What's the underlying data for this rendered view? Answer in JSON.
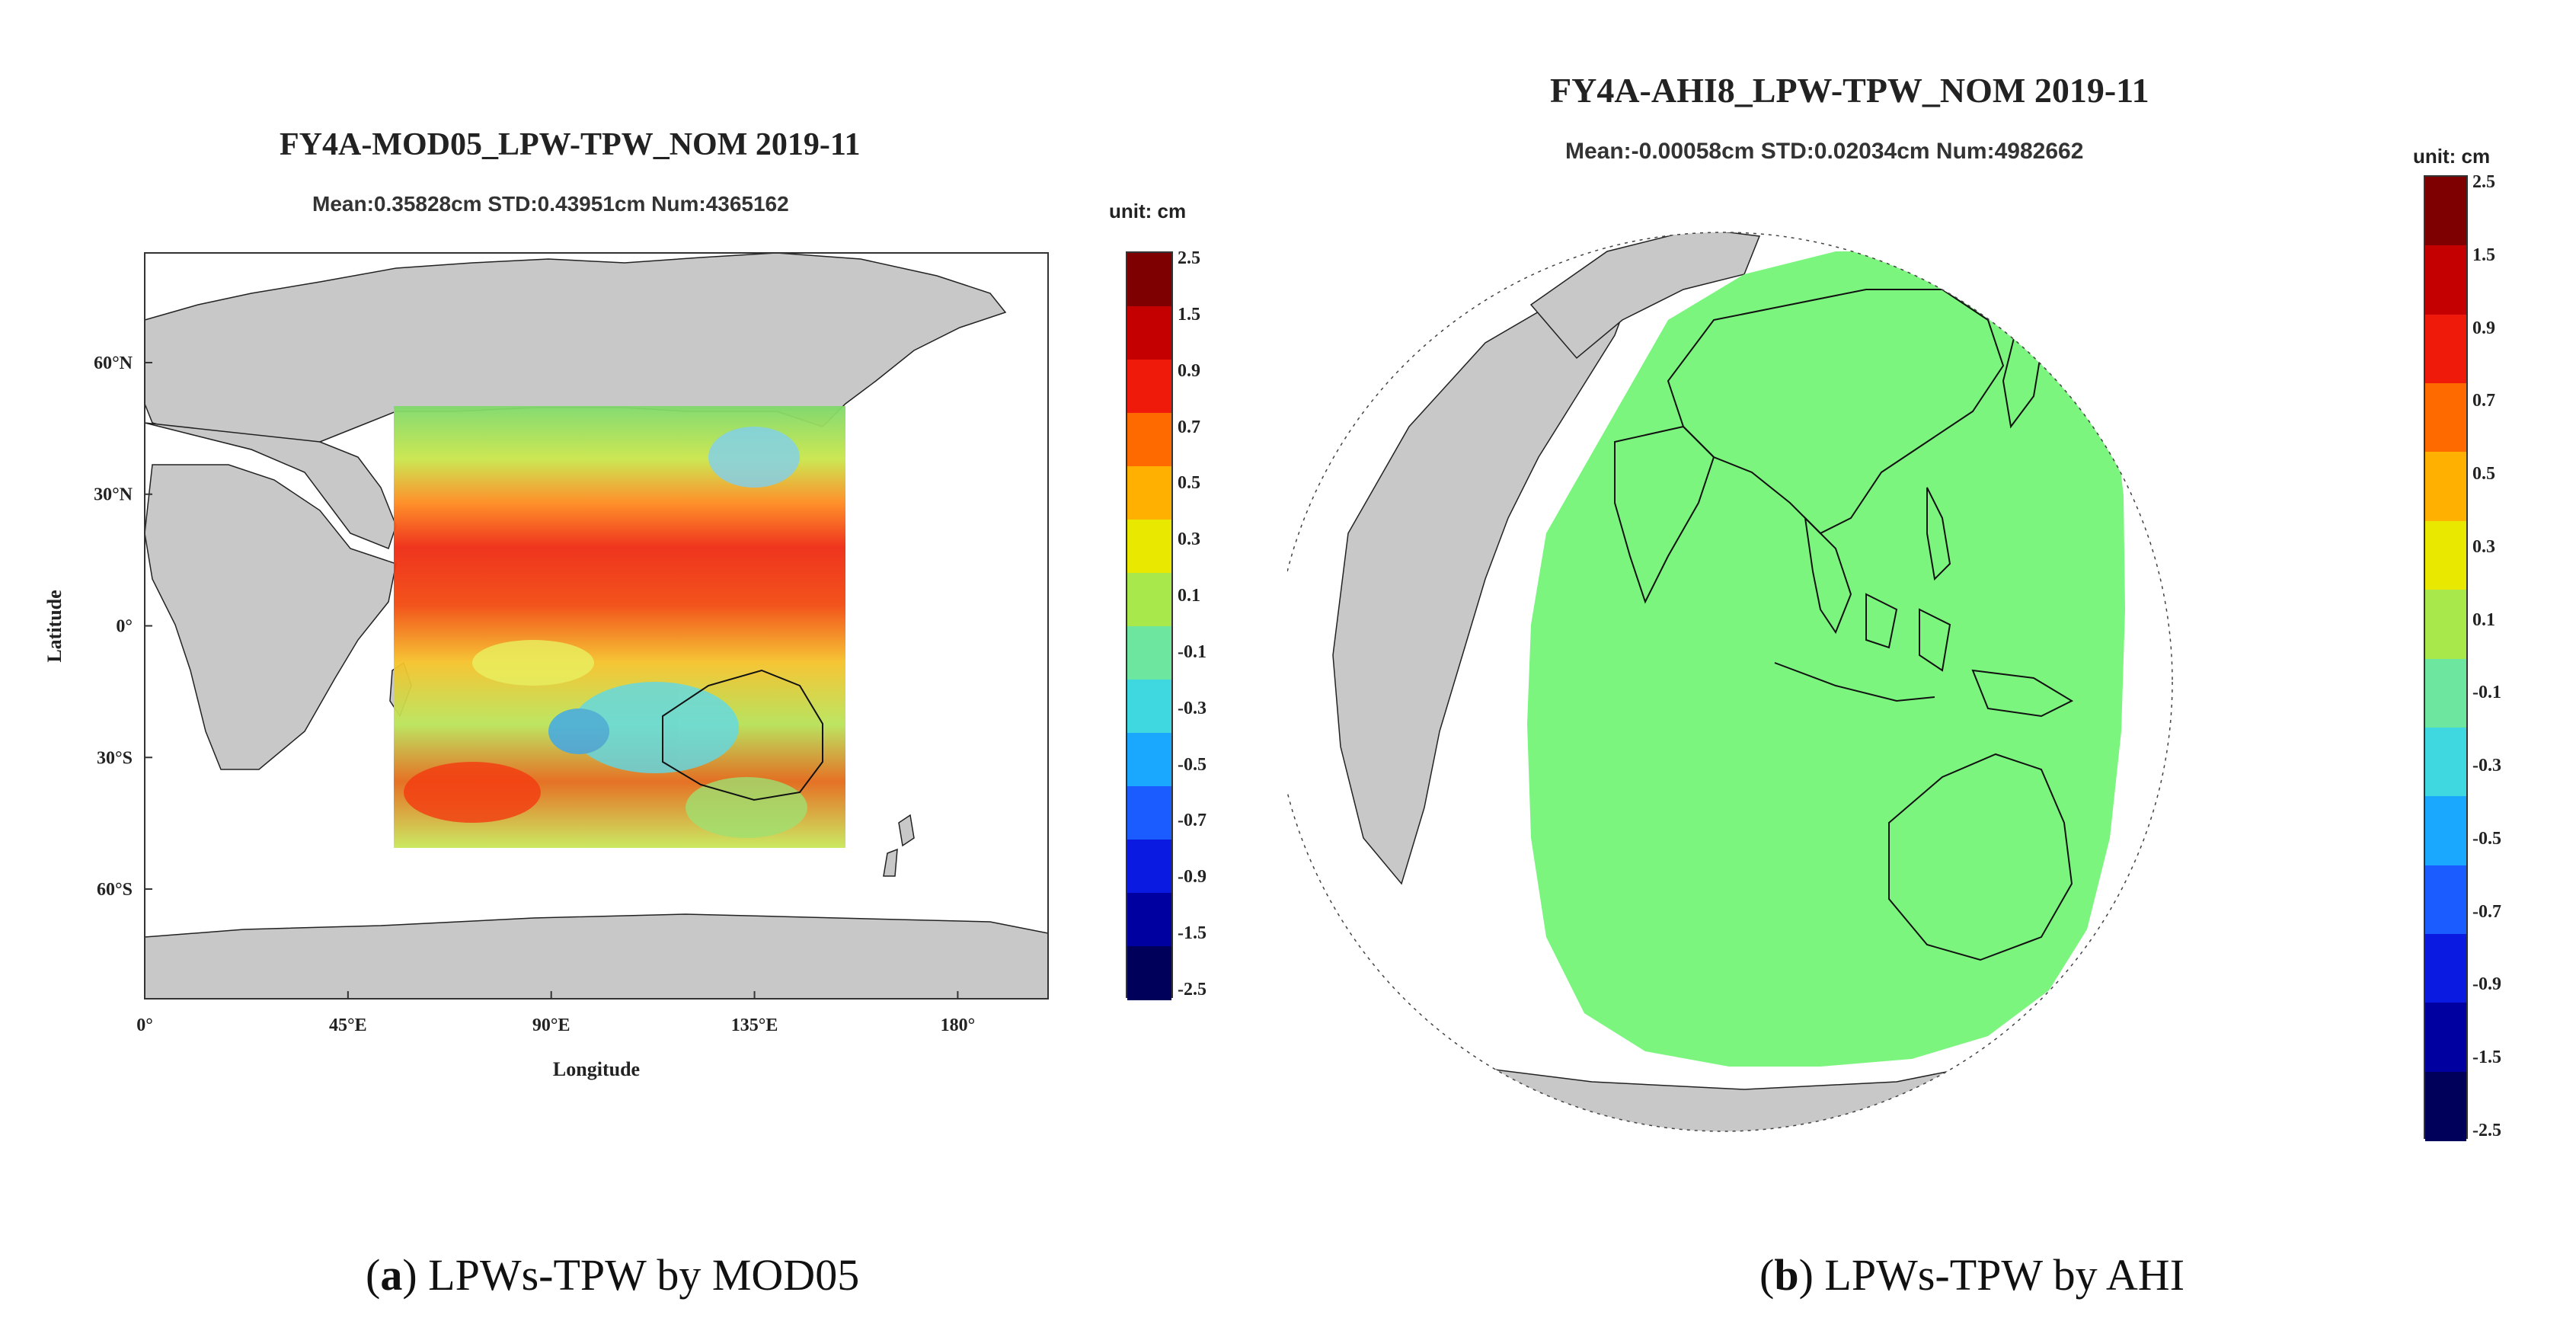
{
  "chart_data": [
    {
      "type": "heatmap",
      "projection": "equirectangular",
      "title": "FY4A-MOD05_LPW-TPW_NOM 2019-11",
      "subtitle": "Mean:0.35828cm  STD:0.43951cm  Num:4365162",
      "xlabel": "Longitude",
      "ylabel": "Latitude",
      "xticks": [
        "0°",
        "45°E",
        "90°E",
        "135°E",
        "180°"
      ],
      "yticks": [
        "60°N",
        "30°N",
        "0°",
        "30°S",
        "60°S"
      ],
      "xlim": [
        0,
        200
      ],
      "ylim": [
        -85,
        85
      ],
      "data_extent": {
        "lon": [
          55,
          155
        ],
        "lat": [
          -50,
          50
        ]
      },
      "colorbar": {
        "unit_label": "unit: cm",
        "ticks": [
          "2.5",
          "1.5",
          "0.9",
          "0.7",
          "0.5",
          "0.3",
          "0.1",
          "-0.1",
          "-0.3",
          "-0.5",
          "-0.7",
          "-0.9",
          "-1.5",
          "-2.5"
        ]
      },
      "statistics": {
        "mean_cm": 0.35828,
        "std_cm": 0.43951,
        "num": 4365162
      },
      "caption": {
        "label": "a",
        "text": " LPWs-TPW by MOD05"
      }
    },
    {
      "type": "heatmap",
      "projection": "orthographic",
      "title": "FY4A-AHI8_LPW-TPW_NOM 2019-11",
      "subtitle": "Mean:-0.00058cm  STD:0.02034cm  Num:4982662",
      "colorbar": {
        "unit_label": "unit: cm",
        "ticks": [
          "2.5",
          "1.5",
          "0.9",
          "0.7",
          "0.5",
          "0.3",
          "0.1",
          "-0.1",
          "-0.3",
          "-0.5",
          "-0.7",
          "-0.9",
          "-1.5",
          "-2.5"
        ]
      },
      "statistics": {
        "mean_cm": -0.00058,
        "std_cm": 0.02034,
        "num": 4982662
      },
      "caption": {
        "label": "b",
        "text": " LPWs-TPW by AHI"
      }
    }
  ],
  "colors": {
    "land": "#c8c8c8",
    "green_field": "#7cf57f",
    "outline": "#111111"
  }
}
